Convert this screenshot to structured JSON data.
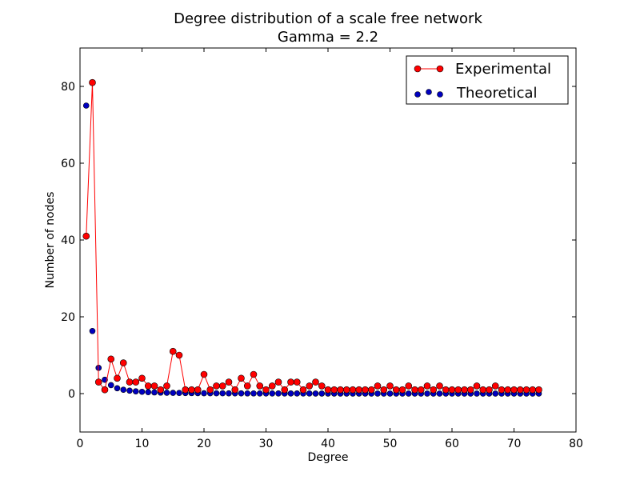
{
  "chart_data": {
    "type": "scatter",
    "title": "Degree distribution of a scale free network",
    "subtitle": "Gamma = 2.2",
    "xlabel": "Degree",
    "ylabel": "Number of nodes",
    "xlim": [
      0,
      80
    ],
    "ylim": [
      -10,
      90
    ],
    "xticks": [
      0,
      10,
      20,
      30,
      40,
      50,
      60,
      70,
      80
    ],
    "yticks": [
      0,
      20,
      40,
      60,
      80
    ],
    "grid": false,
    "legend": "top-right",
    "series": [
      {
        "name": "Experimental",
        "style": "line-marker",
        "color": "#ff0000",
        "x": [
          1,
          2,
          3,
          4,
          5,
          6,
          7,
          8,
          9,
          10,
          11,
          12,
          13,
          14,
          15,
          16,
          17,
          18,
          19,
          20,
          21,
          22,
          23,
          24,
          25,
          26,
          27,
          28,
          29,
          30,
          31,
          32,
          33,
          34,
          35,
          36,
          37,
          38,
          39,
          40,
          41,
          42,
          43,
          44,
          45,
          46,
          47,
          48,
          49,
          50,
          51,
          52,
          53,
          54,
          55,
          56,
          57,
          58,
          59,
          60,
          61,
          62,
          63,
          64,
          65,
          66,
          67,
          68,
          69,
          70,
          71,
          72,
          73,
          74
        ],
        "y": [
          41,
          81,
          3,
          1,
          9,
          4,
          8,
          3,
          3,
          4,
          2,
          2,
          1,
          2,
          11,
          10,
          1,
          1,
          1,
          5,
          1,
          2,
          2,
          3,
          1,
          4,
          2,
          5,
          2,
          1,
          2,
          3,
          1,
          3,
          3,
          1,
          2,
          3,
          2,
          1,
          1,
          1,
          1,
          1,
          1,
          1,
          1,
          2,
          1,
          2,
          1,
          1,
          2,
          1,
          1,
          2,
          1,
          2,
          1,
          1,
          1,
          1,
          1,
          2,
          1,
          1,
          2,
          1,
          1,
          1,
          1,
          1,
          1,
          1
        ]
      },
      {
        "name": "Theoretical",
        "style": "marker",
        "color": "#0000bf",
        "x": [
          1,
          2,
          3,
          4,
          5,
          6,
          7,
          8,
          9,
          10,
          11,
          12,
          13,
          14,
          15,
          16,
          17,
          18,
          19,
          20,
          21,
          22,
          23,
          24,
          25,
          26,
          27,
          28,
          29,
          30,
          31,
          32,
          33,
          34,
          35,
          36,
          37,
          38,
          39,
          40,
          41,
          42,
          43,
          44,
          45,
          46,
          47,
          48,
          49,
          50,
          51,
          52,
          53,
          54,
          55,
          56,
          57,
          58,
          59,
          60,
          61,
          62,
          63,
          64,
          65,
          66,
          67,
          68,
          69,
          70,
          71,
          72,
          73,
          74
        ],
        "y": [
          75,
          16.3,
          6.7,
          3.6,
          2.2,
          1.4,
          1.0,
          0.77,
          0.59,
          0.47,
          0.38,
          0.31,
          0.26,
          0.22,
          0.19,
          0.17,
          0.15,
          0.13,
          0.12,
          0.1,
          0.09,
          0.08,
          0.08,
          0.07,
          0.06,
          0.06,
          0.05,
          0.05,
          0.04,
          0.04,
          0.04,
          0.04,
          0.03,
          0.03,
          0.03,
          0.03,
          0.03,
          0.02,
          0.02,
          0.02,
          0.02,
          0.02,
          0.02,
          0.02,
          0.02,
          0.02,
          0.01,
          0.01,
          0.01,
          0.01,
          0.01,
          0.01,
          0.01,
          0.01,
          0.01,
          0.01,
          0.01,
          0.01,
          0.01,
          0.01,
          0.01,
          0.01,
          0.01,
          0.01,
          0.01,
          0.01,
          0.01,
          0.01,
          0.01,
          0.01,
          0.01,
          0.01,
          0.01,
          0.01
        ]
      }
    ]
  }
}
